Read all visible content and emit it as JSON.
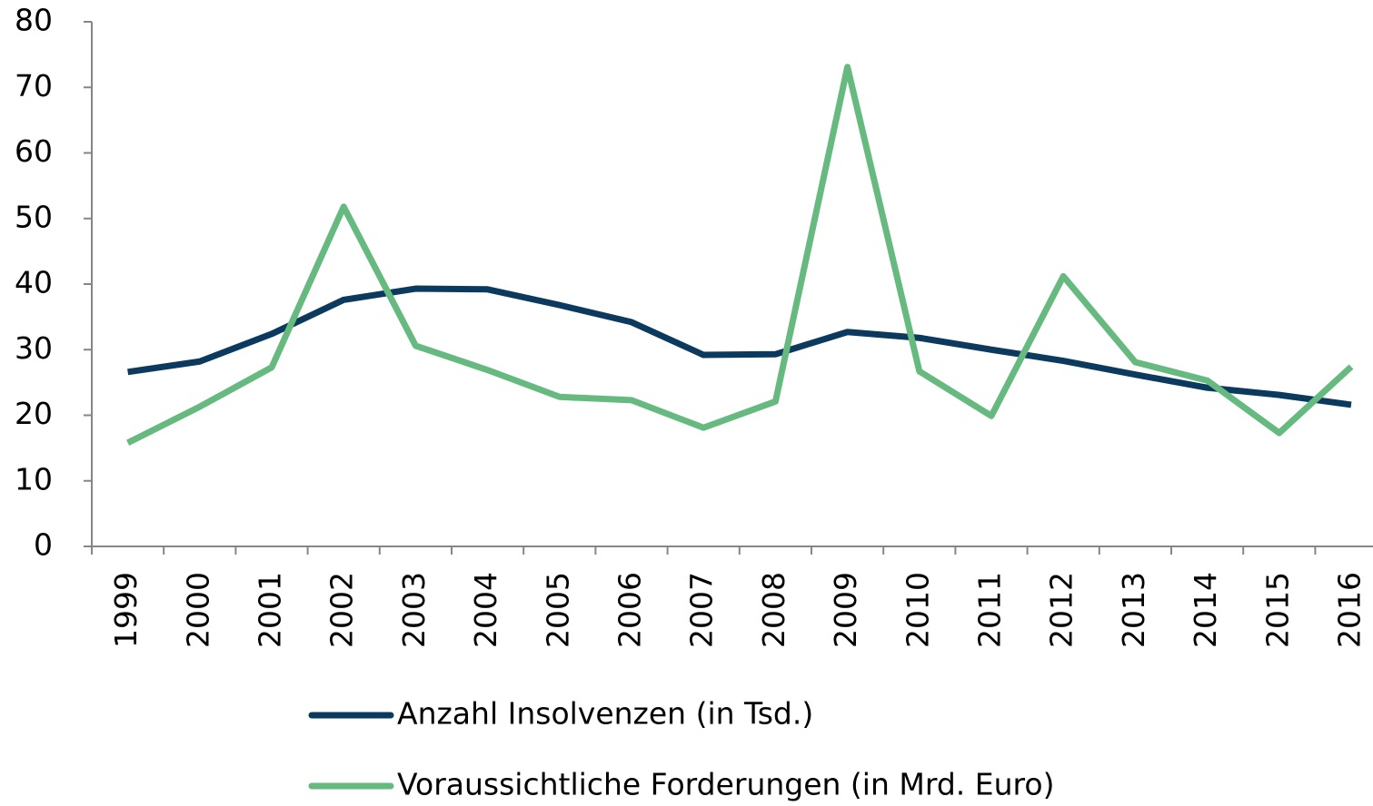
{
  "chart_data": {
    "type": "line",
    "categories": [
      "1999",
      "2000",
      "2001",
      "2002",
      "2003",
      "2004",
      "2005",
      "2006",
      "2007",
      "2008",
      "2009",
      "2010",
      "2011",
      "2012",
      "2013",
      "2014",
      "2015",
      "2016"
    ],
    "series": [
      {
        "name": "Anzahl Insolvenzen (in Tsd.)",
        "color": "#0b3a5e",
        "values": [
          26.6,
          28.2,
          32.4,
          37.6,
          39.3,
          39.2,
          36.8,
          34.2,
          29.2,
          29.3,
          32.7,
          31.8,
          30.0,
          28.3,
          26.2,
          24.2,
          23.1,
          21.6
        ]
      },
      {
        "name": "Voraussichtliche Forderungen (in Mrd. Euro)",
        "color": "#66b97f",
        "values": [
          15.8,
          21.3,
          27.3,
          51.8,
          30.6,
          26.9,
          22.8,
          22.3,
          18.1,
          22.1,
          73.1,
          26.7,
          19.9,
          41.2,
          28.1,
          25.3,
          17.3,
          27.4
        ]
      }
    ],
    "ylim": [
      0,
      80
    ],
    "yticks": [
      0,
      10,
      20,
      30,
      40,
      50,
      60,
      70,
      80
    ],
    "grid": false,
    "legend": "bottom"
  }
}
